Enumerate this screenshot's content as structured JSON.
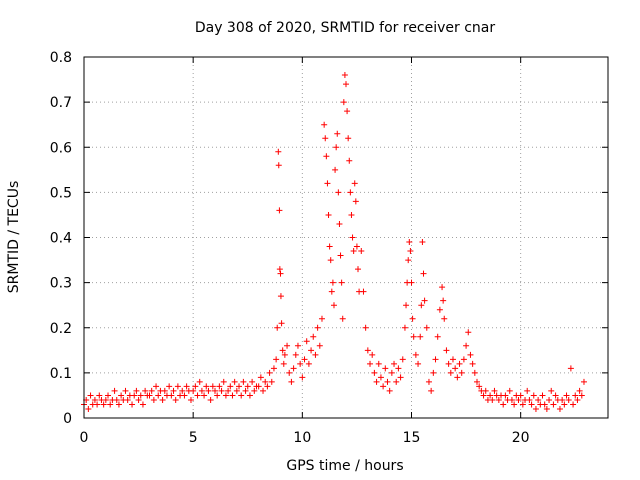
{
  "chart_data": {
    "type": "scatter",
    "title": "Day 308 of 2020, SRMTID for receiver cnar",
    "xlabel": "GPS time / hours",
    "ylabel": "SRMTID / TECUs",
    "xlim": [
      0,
      24
    ],
    "ylim": [
      0,
      0.8
    ],
    "xticks": [
      0,
      5,
      10,
      15,
      20
    ],
    "xtick_labels": [
      "0",
      "5",
      "10",
      "15",
      "20"
    ],
    "yticks": [
      0,
      0.1,
      0.2,
      0.3,
      0.4,
      0.5,
      0.6,
      0.7,
      0.8
    ],
    "ytick_labels": [
      "0",
      "0.1",
      "0.2",
      "0.3",
      "0.4",
      "0.5",
      "0.6",
      "0.7",
      "0.8"
    ],
    "grid": true,
    "marker": "+",
    "color": "#ff0000",
    "series": [
      {
        "name": "SRMTID",
        "points": [
          [
            0.0,
            0.03
          ],
          [
            0.1,
            0.04
          ],
          [
            0.2,
            0.02
          ],
          [
            0.3,
            0.05
          ],
          [
            0.4,
            0.03
          ],
          [
            0.5,
            0.04
          ],
          [
            0.6,
            0.03
          ],
          [
            0.7,
            0.05
          ],
          [
            0.8,
            0.04
          ],
          [
            0.9,
            0.03
          ],
          [
            1.0,
            0.04
          ],
          [
            1.1,
            0.05
          ],
          [
            1.2,
            0.03
          ],
          [
            1.3,
            0.04
          ],
          [
            1.4,
            0.06
          ],
          [
            1.5,
            0.04
          ],
          [
            1.6,
            0.03
          ],
          [
            1.7,
            0.05
          ],
          [
            1.8,
            0.04
          ],
          [
            1.9,
            0.06
          ],
          [
            2.0,
            0.04
          ],
          [
            2.1,
            0.05
          ],
          [
            2.2,
            0.03
          ],
          [
            2.3,
            0.05
          ],
          [
            2.4,
            0.06
          ],
          [
            2.5,
            0.04
          ],
          [
            2.6,
            0.05
          ],
          [
            2.7,
            0.03
          ],
          [
            2.8,
            0.06
          ],
          [
            2.9,
            0.05
          ],
          [
            3.0,
            0.05
          ],
          [
            3.1,
            0.06
          ],
          [
            3.2,
            0.04
          ],
          [
            3.3,
            0.07
          ],
          [
            3.4,
            0.05
          ],
          [
            3.5,
            0.06
          ],
          [
            3.6,
            0.04
          ],
          [
            3.7,
            0.06
          ],
          [
            3.8,
            0.05
          ],
          [
            3.9,
            0.07
          ],
          [
            4.0,
            0.05
          ],
          [
            4.1,
            0.06
          ],
          [
            4.2,
            0.04
          ],
          [
            4.3,
            0.07
          ],
          [
            4.4,
            0.05
          ],
          [
            4.5,
            0.06
          ],
          [
            4.6,
            0.05
          ],
          [
            4.7,
            0.07
          ],
          [
            4.8,
            0.06
          ],
          [
            4.9,
            0.04
          ],
          [
            5.0,
            0.06
          ],
          [
            5.1,
            0.07
          ],
          [
            5.2,
            0.05
          ],
          [
            5.3,
            0.08
          ],
          [
            5.4,
            0.06
          ],
          [
            5.5,
            0.05
          ],
          [
            5.6,
            0.07
          ],
          [
            5.7,
            0.06
          ],
          [
            5.8,
            0.04
          ],
          [
            5.9,
            0.07
          ],
          [
            6.0,
            0.06
          ],
          [
            6.1,
            0.05
          ],
          [
            6.2,
            0.07
          ],
          [
            6.3,
            0.06
          ],
          [
            6.4,
            0.08
          ],
          [
            6.5,
            0.05
          ],
          [
            6.6,
            0.06
          ],
          [
            6.7,
            0.07
          ],
          [
            6.8,
            0.05
          ],
          [
            6.9,
            0.08
          ],
          [
            7.0,
            0.06
          ],
          [
            7.1,
            0.07
          ],
          [
            7.2,
            0.05
          ],
          [
            7.3,
            0.08
          ],
          [
            7.4,
            0.06
          ],
          [
            7.5,
            0.07
          ],
          [
            7.6,
            0.05
          ],
          [
            7.7,
            0.08
          ],
          [
            7.8,
            0.06
          ],
          [
            7.9,
            0.07
          ],
          [
            8.0,
            0.07
          ],
          [
            8.1,
            0.09
          ],
          [
            8.2,
            0.06
          ],
          [
            8.3,
            0.08
          ],
          [
            8.4,
            0.07
          ],
          [
            8.5,
            0.1
          ],
          [
            8.6,
            0.08
          ],
          [
            8.7,
            0.11
          ],
          [
            8.8,
            0.13
          ],
          [
            8.85,
            0.2
          ],
          [
            8.9,
            0.59
          ],
          [
            8.92,
            0.56
          ],
          [
            8.95,
            0.46
          ],
          [
            8.97,
            0.33
          ],
          [
            9.0,
            0.32
          ],
          [
            9.02,
            0.27
          ],
          [
            9.05,
            0.21
          ],
          [
            9.1,
            0.15
          ],
          [
            9.15,
            0.12
          ],
          [
            9.2,
            0.14
          ],
          [
            9.3,
            0.16
          ],
          [
            9.4,
            0.1
          ],
          [
            9.5,
            0.08
          ],
          [
            9.6,
            0.11
          ],
          [
            9.7,
            0.14
          ],
          [
            9.8,
            0.16
          ],
          [
            9.9,
            0.12
          ],
          [
            10.0,
            0.09
          ],
          [
            10.1,
            0.13
          ],
          [
            10.2,
            0.17
          ],
          [
            10.3,
            0.12
          ],
          [
            10.4,
            0.15
          ],
          [
            10.5,
            0.18
          ],
          [
            10.6,
            0.14
          ],
          [
            10.7,
            0.2
          ],
          [
            10.8,
            0.16
          ],
          [
            10.9,
            0.22
          ],
          [
            11.0,
            0.65
          ],
          [
            11.05,
            0.62
          ],
          [
            11.1,
            0.58
          ],
          [
            11.15,
            0.52
          ],
          [
            11.2,
            0.45
          ],
          [
            11.25,
            0.38
          ],
          [
            11.3,
            0.35
          ],
          [
            11.35,
            0.28
          ],
          [
            11.4,
            0.3
          ],
          [
            11.45,
            0.25
          ],
          [
            11.5,
            0.55
          ],
          [
            11.55,
            0.6
          ],
          [
            11.6,
            0.63
          ],
          [
            11.65,
            0.5
          ],
          [
            11.7,
            0.43
          ],
          [
            11.75,
            0.36
          ],
          [
            11.8,
            0.3
          ],
          [
            11.85,
            0.22
          ],
          [
            11.9,
            0.7
          ],
          [
            11.95,
            0.76
          ],
          [
            12.0,
            0.74
          ],
          [
            12.05,
            0.68
          ],
          [
            12.1,
            0.62
          ],
          [
            12.15,
            0.57
          ],
          [
            12.2,
            0.5
          ],
          [
            12.25,
            0.45
          ],
          [
            12.3,
            0.4
          ],
          [
            12.35,
            0.37
          ],
          [
            12.4,
            0.52
          ],
          [
            12.45,
            0.48
          ],
          [
            12.5,
            0.38
          ],
          [
            12.55,
            0.33
          ],
          [
            12.6,
            0.28
          ],
          [
            12.7,
            0.37
          ],
          [
            12.8,
            0.28
          ],
          [
            12.9,
            0.2
          ],
          [
            13.0,
            0.15
          ],
          [
            13.1,
            0.12
          ],
          [
            13.2,
            0.14
          ],
          [
            13.3,
            0.1
          ],
          [
            13.4,
            0.08
          ],
          [
            13.5,
            0.12
          ],
          [
            13.6,
            0.09
          ],
          [
            13.7,
            0.07
          ],
          [
            13.8,
            0.11
          ],
          [
            13.9,
            0.08
          ],
          [
            14.0,
            0.06
          ],
          [
            14.1,
            0.1
          ],
          [
            14.2,
            0.12
          ],
          [
            14.3,
            0.08
          ],
          [
            14.4,
            0.11
          ],
          [
            14.5,
            0.09
          ],
          [
            14.6,
            0.13
          ],
          [
            14.7,
            0.2
          ],
          [
            14.75,
            0.25
          ],
          [
            14.8,
            0.3
          ],
          [
            14.85,
            0.35
          ],
          [
            14.9,
            0.39
          ],
          [
            14.95,
            0.37
          ],
          [
            15.0,
            0.3
          ],
          [
            15.05,
            0.22
          ],
          [
            15.1,
            0.18
          ],
          [
            15.2,
            0.14
          ],
          [
            15.3,
            0.12
          ],
          [
            15.4,
            0.18
          ],
          [
            15.45,
            0.25
          ],
          [
            15.5,
            0.39
          ],
          [
            15.55,
            0.32
          ],
          [
            15.6,
            0.26
          ],
          [
            15.7,
            0.2
          ],
          [
            15.8,
            0.08
          ],
          [
            15.9,
            0.06
          ],
          [
            16.0,
            0.1
          ],
          [
            16.1,
            0.13
          ],
          [
            16.2,
            0.18
          ],
          [
            16.3,
            0.24
          ],
          [
            16.4,
            0.29
          ],
          [
            16.45,
            0.26
          ],
          [
            16.5,
            0.22
          ],
          [
            16.6,
            0.15
          ],
          [
            16.7,
            0.12
          ],
          [
            16.8,
            0.1
          ],
          [
            16.9,
            0.13
          ],
          [
            17.0,
            0.11
          ],
          [
            17.1,
            0.09
          ],
          [
            17.2,
            0.12
          ],
          [
            17.3,
            0.1
          ],
          [
            17.4,
            0.13
          ],
          [
            17.5,
            0.16
          ],
          [
            17.6,
            0.19
          ],
          [
            17.7,
            0.14
          ],
          [
            17.8,
            0.12
          ],
          [
            17.9,
            0.1
          ],
          [
            18.0,
            0.08
          ],
          [
            18.1,
            0.07
          ],
          [
            18.2,
            0.06
          ],
          [
            18.3,
            0.05
          ],
          [
            18.4,
            0.06
          ],
          [
            18.5,
            0.04
          ],
          [
            18.6,
            0.05
          ],
          [
            18.7,
            0.04
          ],
          [
            18.8,
            0.06
          ],
          [
            18.9,
            0.05
          ],
          [
            19.0,
            0.04
          ],
          [
            19.1,
            0.05
          ],
          [
            19.2,
            0.03
          ],
          [
            19.3,
            0.05
          ],
          [
            19.4,
            0.04
          ],
          [
            19.5,
            0.06
          ],
          [
            19.6,
            0.04
          ],
          [
            19.7,
            0.03
          ],
          [
            19.8,
            0.05
          ],
          [
            19.9,
            0.04
          ],
          [
            20.0,
            0.05
          ],
          [
            20.1,
            0.03
          ],
          [
            20.2,
            0.04
          ],
          [
            20.3,
            0.06
          ],
          [
            20.4,
            0.04
          ],
          [
            20.5,
            0.03
          ],
          [
            20.6,
            0.05
          ],
          [
            20.7,
            0.02
          ],
          [
            20.8,
            0.04
          ],
          [
            20.9,
            0.03
          ],
          [
            21.0,
            0.05
          ],
          [
            21.1,
            0.03
          ],
          [
            21.2,
            0.02
          ],
          [
            21.3,
            0.04
          ],
          [
            21.4,
            0.06
          ],
          [
            21.5,
            0.03
          ],
          [
            21.6,
            0.05
          ],
          [
            21.7,
            0.04
          ],
          [
            21.8,
            0.02
          ],
          [
            21.9,
            0.04
          ],
          [
            22.0,
            0.03
          ],
          [
            22.1,
            0.05
          ],
          [
            22.2,
            0.04
          ],
          [
            22.3,
            0.11
          ],
          [
            22.4,
            0.03
          ],
          [
            22.5,
            0.05
          ],
          [
            22.6,
            0.04
          ],
          [
            22.7,
            0.06
          ],
          [
            22.8,
            0.05
          ],
          [
            22.9,
            0.08
          ]
        ]
      }
    ]
  }
}
